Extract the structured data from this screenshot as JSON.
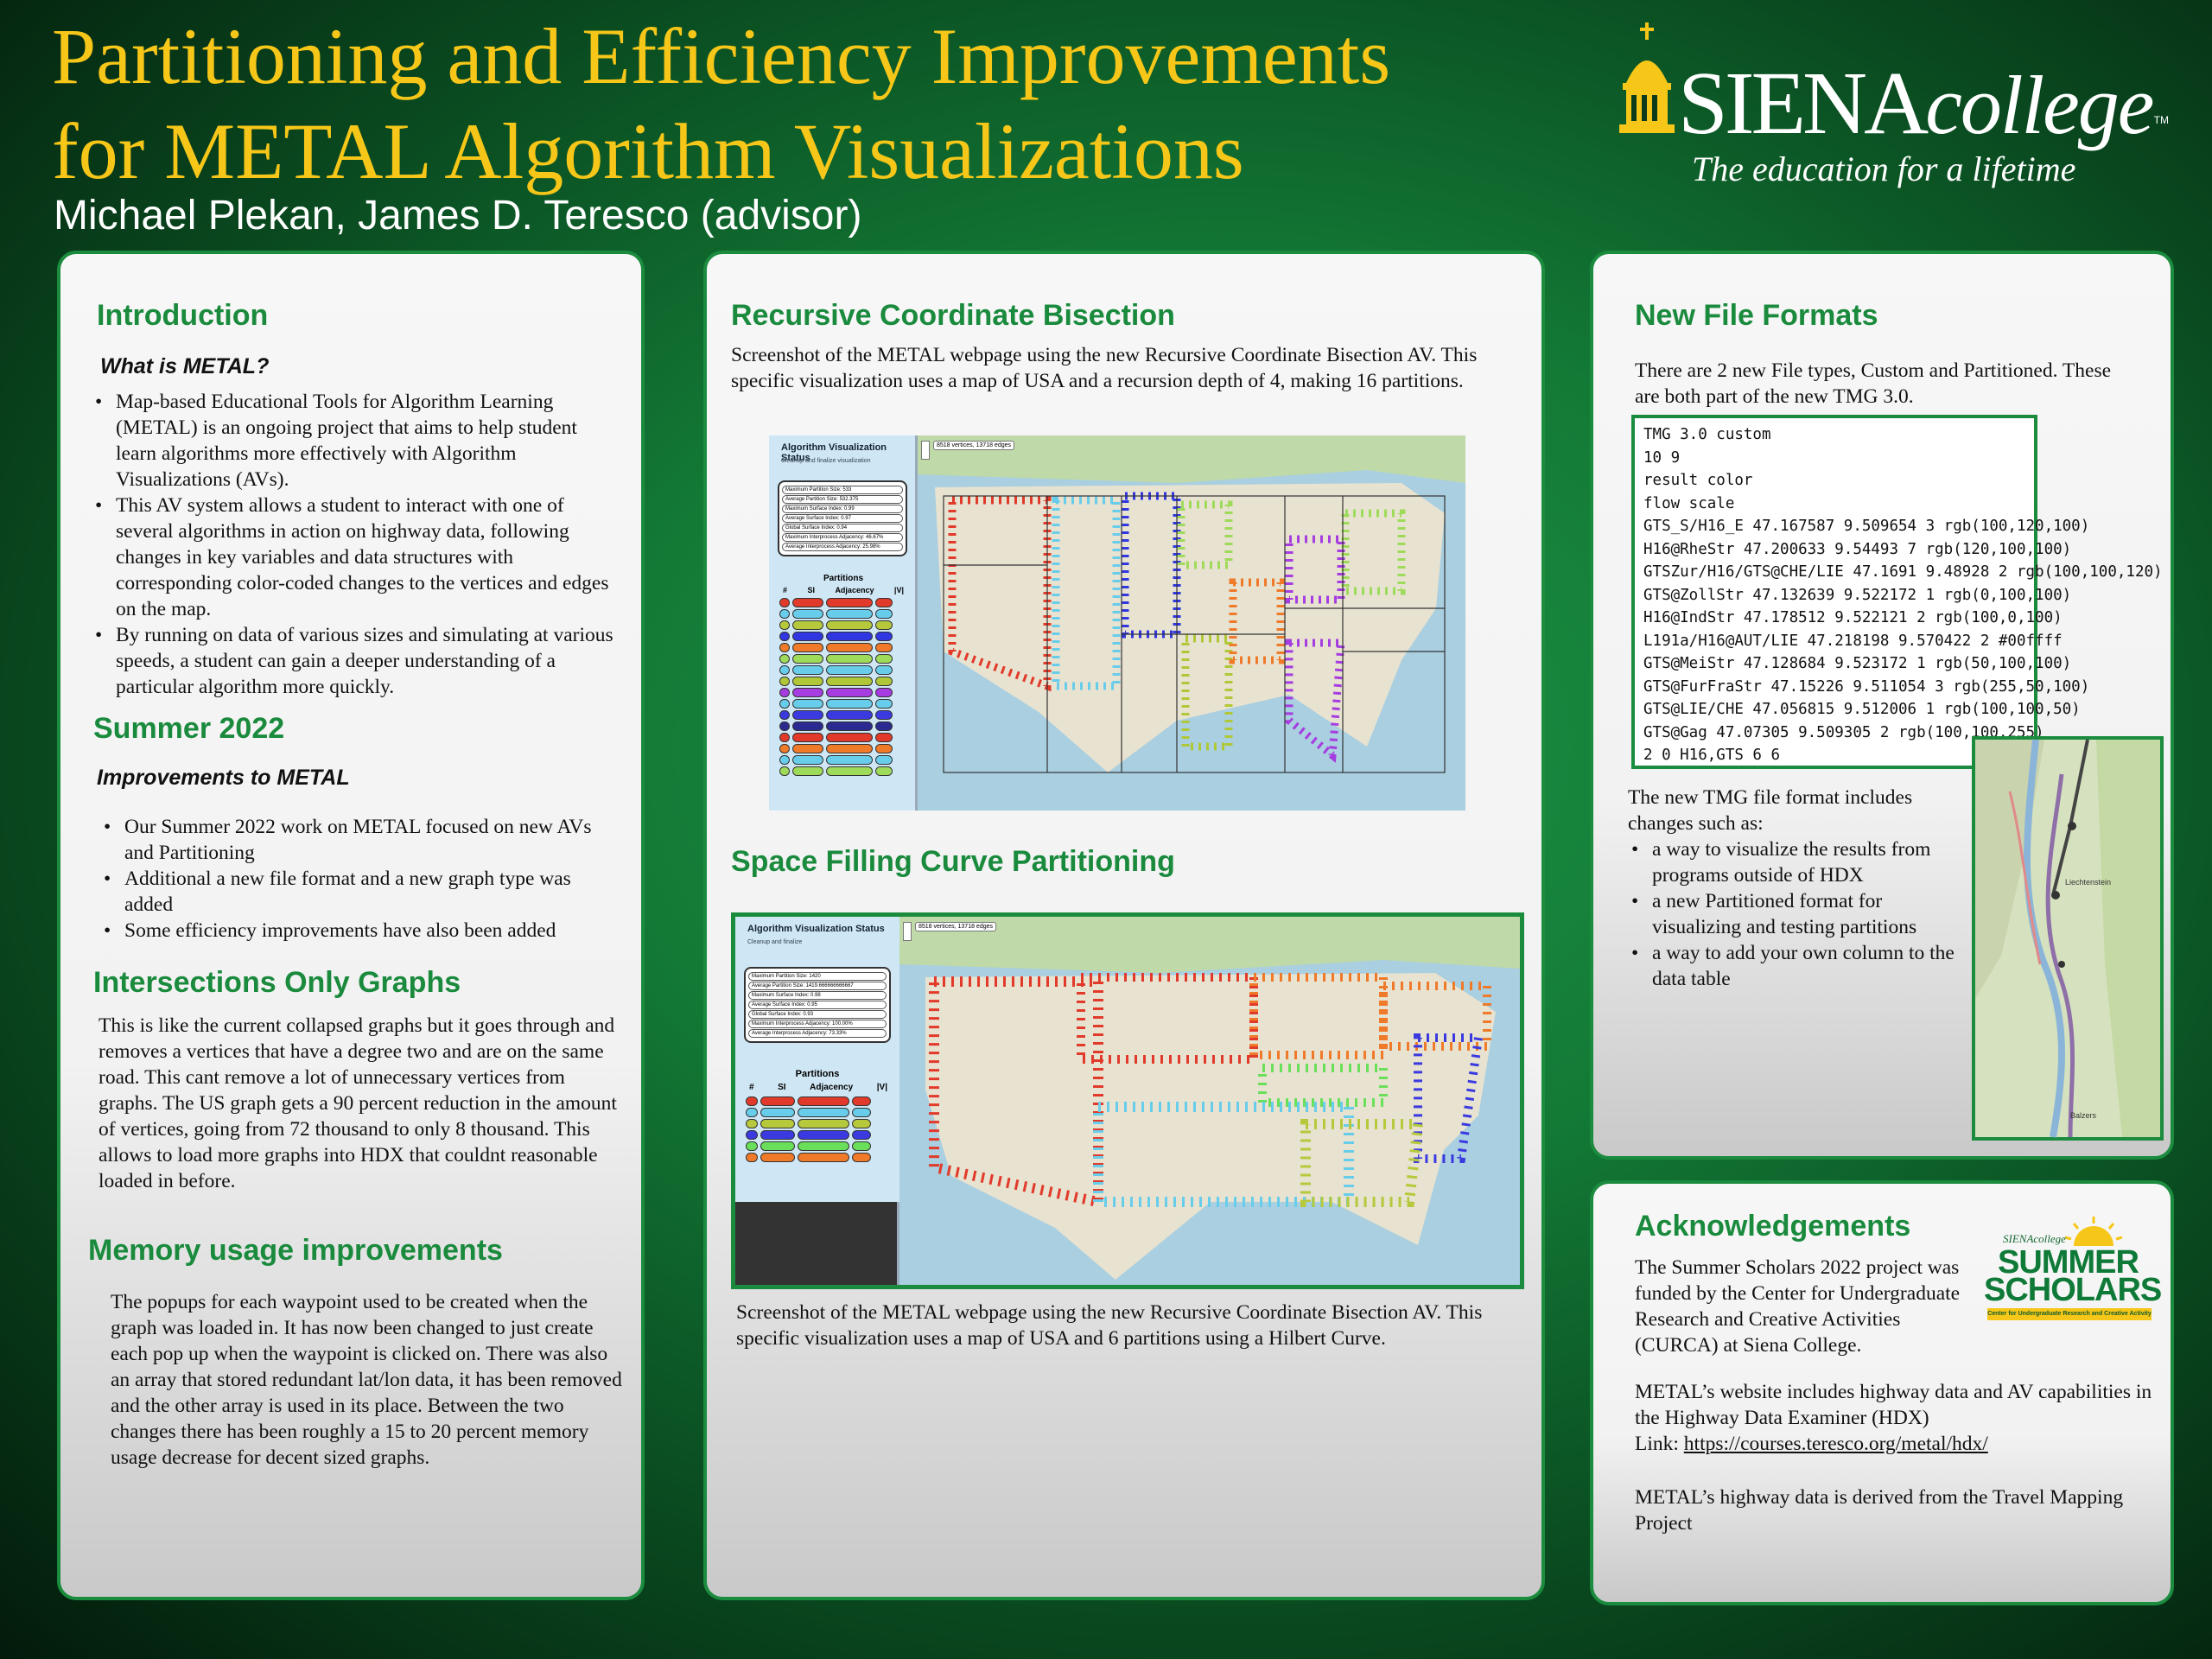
{
  "header": {
    "title_line1": "Partitioning and Efficiency Improvements",
    "title_line2": "for METAL Algorithm Visualizations",
    "authors": "Michael Plekan, James D. Teresco (advisor)"
  },
  "logo": {
    "name": "SIENA",
    "name_italic": "college",
    "tagline": "The education for a lifetime",
    "tm": "TM",
    "icon": "siena-dome-icon"
  },
  "intro": {
    "heading": "Introduction",
    "subheading": "What is METAL?",
    "bullets": [
      "Map-based Educational Tools for Algorithm Learning (METAL) is an ongoing project that aims to help student learn algorithms more effectively with Algorithm Visualizations (AVs).",
      "This AV system allows a student to interact with one of several algorithms in action on highway data, following changes in key variables and data structures with corresponding color-coded changes to the vertices and edges on the map.",
      "By running on data of various sizes and simulating at various speeds, a student can gain a deeper understanding of a particular algorithm more quickly."
    ]
  },
  "summer": {
    "heading": "Summer 2022",
    "subheading": "Improvements to METAL",
    "bullets": [
      "Our Summer 2022 work on METAL focused on new AVs and Partitioning",
      "Additional a new file format and a new graph type was added",
      "Some efficiency improvements have also been added"
    ]
  },
  "intersections": {
    "heading": "Intersections Only Graphs",
    "body": "This is like the current collapsed graphs but it goes through and removes a vertices that have a degree two and are on the same road. This cant remove a lot of unnecessary vertices from graphs. The US graph gets a 90 percent reduction in the amount of vertices, going from 72 thousand to only 8 thousand. This allows to load more graphs into HDX that couldnt reasonable loaded in before."
  },
  "memory": {
    "heading": "Memory usage improvements",
    "body": "The popups for each waypoint used to be created when the graph was loaded in. It has now been changed to just create each pop up when the waypoint is clicked on. There was also an array that stored redundant lat/lon data, it has been removed and the other array is used in its place. Between the two changes there has been roughly a 15 to 20 percent memory usage decrease for decent sized graphs."
  },
  "rcb": {
    "heading": "Recursive Coordinate Bisection",
    "caption": "Screenshot of the METAL webpage using the new Recursive Coordinate Bisection AV. This specific visualization uses a map of USA and a recursion depth of 4, making 16 partitions.",
    "status_title": "Algorithm Visualization Status",
    "status_sub": "Cleanup and finalize visualization",
    "map_label": "8518 vertices, 13718 edges",
    "partitions_label": "Partitions",
    "col_hash": "#",
    "col_si": "SI",
    "col_adj": "Adjacency",
    "col_v": "|V|",
    "stats": [
      "Maximum Partition Size: 533",
      "Average Partition Size: 532.375",
      "Maximum Surface Index: 0.99",
      "Average Surface Index: 0.97",
      "Global Surface Index: 0.94",
      "Maximum Interprocess Adjacency: 46.67%",
      "Average Interprocess Adjacency: 25.98%"
    ],
    "row_colors": [
      "#e23a2a",
      "#68cdeb",
      "#b6c93c",
      "#3036e0",
      "#ef7a2a",
      "#9fdb5a",
      "#68cdeb",
      "#b0c838",
      "#a63de0",
      "#68cdeb",
      "#3a3ae0",
      "#2a2a90",
      "#e23a2a",
      "#ef7a2a",
      "#68cdeb",
      "#9fdb5a"
    ]
  },
  "sfc": {
    "heading": "Space Filling Curve Partitioning",
    "caption": "Screenshot of the METAL webpage using the new Recursive Coordinate Bisection AV. This specific visualization uses a map of USA and 6 partitions using a Hilbert Curve.",
    "status_title": "Algorithm Visualization Status",
    "status_sub": "Cleanup and finalize",
    "map_label": "8518 vertices, 13718 edges",
    "partitions_label": "Partitions",
    "col_hash": "#",
    "col_si": "SI",
    "col_adj": "Adjacency",
    "col_v": "|V|",
    "stats": [
      "Maximum Partition Size: 1420",
      "Average Partition Size: 1419.666666666667",
      "Maximum Surface Index: 0.98",
      "Average Surface Index: 0.95",
      "Global Surface Index: 0.93",
      "Maximum Interprocess Adjacency: 100.00%",
      "Average Interprocess Adjacency: 73.33%"
    ],
    "row_colors": [
      "#e23a2a",
      "#68cdeb",
      "#b6c93c",
      "#3a3ae0",
      "#6adf5a",
      "#ef7a2a"
    ]
  },
  "formats": {
    "heading": "New File Formats",
    "intro": "There are 2 new File types, Custom and Partitioned. These are both part of the new TMG 3.0.",
    "code_lines": [
      "TMG 3.0 custom",
      "10 9",
      "result color",
      "flow scale",
      "GTS_S/H16_E 47.167587 9.509654 3 rgb(100,120,100)",
      "H16@RheStr 47.200633 9.54493 7 rgb(120,100,100)",
      "GTSZur/H16/GTS@CHE/LIE 47.1691 9.48928 2 rgb(100,100,120)",
      "GTS@ZollStr 47.132639 9.522172 1 rgb(0,100,100)",
      "H16@IndStr 47.178512 9.522121 2 rgb(100,0,100)",
      "L191a/H16@AUT/LIE 47.218198 9.570422 2 #00ffff",
      "GTS@MeiStr 47.128684 9.523172 1 rgb(50,100,100)",
      "GTS@FurFraStr 47.15226 9.511054 3 rgb(255,50,100)",
      "GTS@LIE/CHE 47.056815 9.512006 1 rgb(100,100,50)",
      "GTS@Gag 47.07305 9.509305 2 rgb(100,100,255)",
      "2 0 H16,GTS 6 6"
    ],
    "body_intro": "The new TMG file format  includes changes such as:",
    "bullets": [
      "a way to visualize the results from programs outside of HDX",
      "a new Partitioned format for visualizing and testing partitions",
      "a way to add your own column to the data table"
    ],
    "map_labels": [
      "Liechtenstein",
      "Balzers"
    ]
  },
  "ack": {
    "heading": "Acknowledgements",
    "funding": "The Summer Scholars 2022 project was funded by the Center for Undergraduate Research and Creative Activities (CURCA) at Siena College.",
    "website": "METAL’s website includes highway data and AV capabilities in the Highway Data Examiner (HDX)",
    "link_prefix": "Link: ",
    "link": "https://courses.teresco.org/metal/hdx/",
    "travel": "METAL’s highway data is derived from the Travel Mapping Project",
    "scholars_top": "SIENAcollege",
    "scholars_line1": "SUMMER",
    "scholars_line2": "SCHOLARS",
    "scholars_sub": "Center for Undergraduate Research and Creative Activity"
  }
}
